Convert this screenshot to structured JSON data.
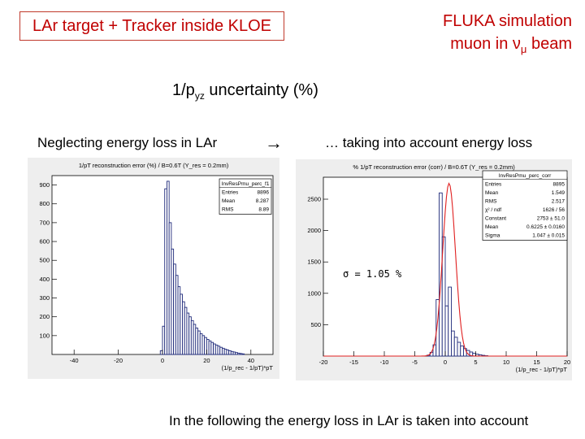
{
  "slide": {
    "title_box": "LAr target + Tracker inside KLOE",
    "sim_title_line1": "FLUKA simulation",
    "sim_title_line2_prefix": "muon in ",
    "sim_title_nu": "ν",
    "sim_title_mu": "μ",
    "sim_title_line2_suffix": " beam",
    "uncert_prefix": "1/p",
    "uncert_sub": "yz",
    "uncert_suffix": " uncertainty (%)",
    "left_caption": "Neglecting energy loss in LAr",
    "arrow": "→",
    "right_caption": "… taking into account energy loss",
    "bottom_note": "In the following the energy loss in LAr is taken into account"
  },
  "chart_data": [
    {
      "type": "bar",
      "title": "1/pT reconstruction error (%) / B=0.6T (Y_res = 0.2mm)",
      "xlabel": "(1/p_rec - 1/pT)*pT",
      "xlim": [
        -50,
        50
      ],
      "ylim": [
        0,
        950
      ],
      "xticks": [
        -40,
        -20,
        0,
        20,
        40
      ],
      "yticks": [
        100,
        200,
        300,
        400,
        500,
        600,
        700,
        800,
        900
      ],
      "stats": {
        "name": "InvResPmu_perc_f1",
        "rows": [
          {
            "label": "Entries",
            "value": "8896"
          },
          {
            "label": "Mean",
            "value": "8.287"
          },
          {
            "label": "RMS",
            "value": "8.89"
          }
        ]
      },
      "series": [
        {
          "bin_width": 1,
          "x_start": -1,
          "values": [
            20,
            150,
            880,
            920,
            700,
            560,
            480,
            420,
            360,
            320,
            280,
            250,
            220,
            200,
            180,
            160,
            140,
            125,
            110,
            100,
            90,
            80,
            72,
            64,
            56,
            50,
            44,
            38,
            33,
            28,
            24,
            20,
            16,
            13,
            10,
            7,
            5,
            3
          ]
        }
      ]
    },
    {
      "type": "bar",
      "title": "% 1/pT reconstruction error (corr) / B=0.6T (Y_res = 0.2mm)",
      "xlabel": "(1/p_rec - 1/pT)*pT",
      "xlim": [
        -20,
        20
      ],
      "ylim": [
        0,
        2850
      ],
      "xticks": [
        -20,
        -15,
        -10,
        -5,
        0,
        5,
        10,
        15,
        20
      ],
      "yticks": [
        500,
        1000,
        1500,
        2000,
        2500
      ],
      "annotation": "σ = 1.05 %",
      "stats": {
        "name": "InvResPmu_perc_corr",
        "rows": [
          {
            "label": "Entries",
            "value": "8895"
          },
          {
            "label": "Mean",
            "value": "1.549"
          },
          {
            "label": "RMS",
            "value": "2.517"
          },
          {
            "label": "χ² / ndf",
            "value": "1626 / 56"
          },
          {
            "label": "Constant",
            "value": "2753 ± 51.0"
          },
          {
            "label": "Mean",
            "value": "0.6225 ± 0.0160"
          },
          {
            "label": "Sigma",
            "value": "1.047 ± 0.015"
          }
        ]
      },
      "series": [
        {
          "name": "histogram",
          "bin_width": 0.5,
          "x_start": -3,
          "values": [
            15,
            60,
            180,
            900,
            2600,
            1900,
            800,
            1100,
            400,
            300,
            220,
            160,
            120,
            90,
            65,
            45,
            30,
            20,
            12,
            6
          ]
        },
        {
          "name": "gaussian fit",
          "function": "gaussian",
          "constant": 2753,
          "mean": 0.6225,
          "sigma": 1.047
        }
      ]
    }
  ]
}
